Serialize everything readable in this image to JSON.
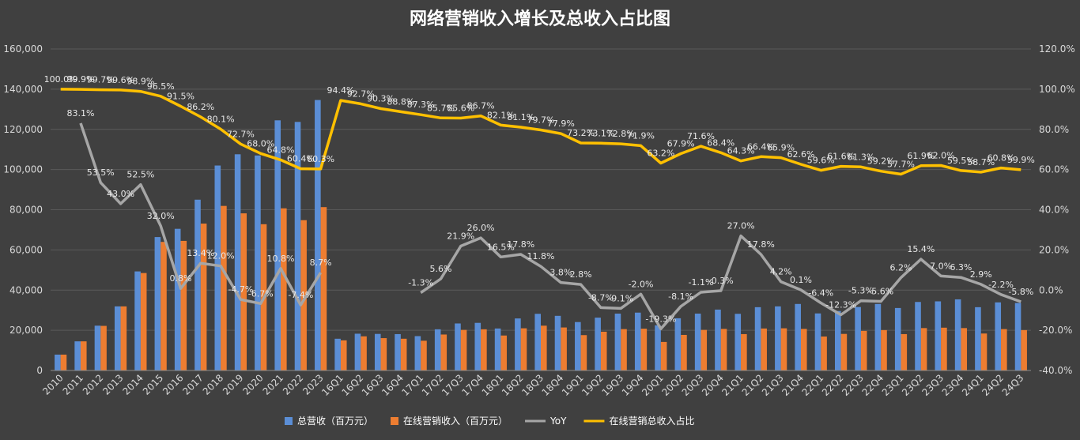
{
  "chart_data": {
    "type": "bar",
    "title": "网络营销收入增长及总收入占比图",
    "categories": [
      "2010",
      "2011",
      "2012",
      "2013",
      "2014",
      "2015",
      "2016",
      "2017",
      "2018",
      "2019",
      "2020",
      "2021",
      "2022",
      "2023",
      "16Q1",
      "16Q2",
      "16Q3",
      "16Q4",
      "17Q1",
      "17Q2",
      "17Q3",
      "17Q4",
      "18Q1",
      "18Q2",
      "18Q3",
      "18Q4",
      "19Q1",
      "19Q2",
      "19Q3",
      "19Q4",
      "20Q1",
      "20Q2",
      "20Q3",
      "20Q4",
      "21Q1",
      "21Q2",
      "21Q3",
      "21Q4",
      "22Q1",
      "22Q2",
      "22Q3",
      "22Q4",
      "23Q1",
      "23Q2",
      "23Q3",
      "23Q4",
      "24Q1",
      "24Q2",
      "24Q3"
    ],
    "y_left": {
      "ticks": [
        "0",
        "20,000",
        "40,000",
        "60,000",
        "80,000",
        "100,000",
        "120,000",
        "140,000",
        "160,000"
      ],
      "min": 0,
      "max": 160000
    },
    "y_right": {
      "ticks": [
        "-40.0%",
        "-20.0%",
        "0.0%",
        "20.0%",
        "40.0%",
        "60.0%",
        "80.0%",
        "100.0%",
        "120.0%"
      ],
      "min": -40,
      "max": 120
    },
    "grid": true,
    "legend_position": "bottom",
    "series": [
      {
        "name": "总营收（百万元）",
        "type": "bar",
        "axis": "left",
        "color": "#5b8ed6",
        "values": [
          7900,
          14500,
          22300,
          31900,
          49300,
          66400,
          70500,
          85000,
          102000,
          107600,
          107000,
          124500,
          123700,
          134600,
          15800,
          18300,
          18200,
          18100,
          17100,
          20500,
          23400,
          23700,
          20900,
          25900,
          28200,
          27200,
          24100,
          26300,
          28300,
          28800,
          22500,
          26000,
          28300,
          30300,
          28200,
          31500,
          31900,
          33100,
          28400,
          29600,
          31600,
          33100,
          31100,
          34100,
          34400,
          35400,
          31500,
          33900,
          33600
        ]
      },
      {
        "name": "在线营销收入（百万元）",
        "type": "bar",
        "axis": "left",
        "color": "#ed7d31",
        "values": [
          7900,
          14500,
          22200,
          31900,
          48500,
          64000,
          64500,
          73100,
          81900,
          78200,
          72800,
          80700,
          74800,
          81300,
          15000,
          17000,
          16100,
          15800,
          14800,
          17900,
          20200,
          20500,
          17400,
          21000,
          22300,
          21400,
          17600,
          19300,
          20600,
          20800,
          14200,
          17700,
          20200,
          20700,
          18100,
          20900,
          21000,
          20700,
          16900,
          18200,
          19700,
          20100,
          18100,
          21100,
          21300,
          21100,
          18400,
          20600,
          20100
        ]
      },
      {
        "name": "YoY",
        "type": "line",
        "axis": "right",
        "color": "#a6a6a6",
        "values": [
          null,
          83.1,
          53.5,
          43.0,
          52.5,
          32.0,
          0.8,
          13.4,
          12.0,
          -4.7,
          -6.7,
          10.8,
          -7.4,
          8.7,
          null,
          null,
          null,
          null,
          -1.3,
          5.6,
          21.9,
          26.0,
          16.5,
          17.8,
          11.8,
          3.8,
          2.8,
          -8.7,
          -9.1,
          -2.0,
          -19.3,
          -8.1,
          -1.1,
          -0.3,
          27.0,
          17.8,
          4.2,
          0.1,
          -6.4,
          -12.3,
          -5.3,
          -5.6,
          6.2,
          15.4,
          7.0,
          6.3,
          2.9,
          -2.2,
          -5.8
        ],
        "labels": [
          "",
          "83.1%",
          "53.5%",
          "43.0%",
          "52.5%",
          "32.0%",
          "0.8%",
          "13.4%",
          "12.0%",
          "-4.7%",
          "-6.7%",
          "10.8%",
          "-7.4%",
          "8.7%",
          "",
          "",
          "",
          "",
          "-1.3%",
          "5.6%",
          "21.9%",
          "26.0%",
          "16.5%",
          "17.8%",
          "11.8%",
          "3.8%",
          "2.8%",
          "-8.7%",
          "-9.1%",
          "-2.0%",
          "-19.3%",
          "-8.1%",
          "-1.1%",
          "-0.3%",
          "27.0%",
          "17.8%",
          "4.2%",
          "0.1%",
          "-6.4%",
          "-12.3%",
          "-5.3%",
          "-5.6%",
          "6.2%",
          "15.4%",
          "7.0%",
          "6.3%",
          "2.9%",
          "-2.2%",
          "-5.8%"
        ]
      },
      {
        "name": "在线营销总收入占比",
        "type": "line",
        "axis": "right",
        "color": "#ffc000",
        "values": [
          100.0,
          99.9,
          99.7,
          99.6,
          98.9,
          96.5,
          91.5,
          86.2,
          80.1,
          72.7,
          68.0,
          64.8,
          60.4,
          60.3,
          94.4,
          92.7,
          90.3,
          88.8,
          87.3,
          85.7,
          85.6,
          86.7,
          82.1,
          81.1,
          79.7,
          77.9,
          73.2,
          73.1,
          72.8,
          71.9,
          63.2,
          67.9,
          71.6,
          68.4,
          64.3,
          66.4,
          65.9,
          62.6,
          59.6,
          61.6,
          61.3,
          59.2,
          57.7,
          61.9,
          62.0,
          59.5,
          58.7,
          60.8,
          59.9
        ],
        "labels": [
          "100.0%",
          "99.9%",
          "99.7%",
          "99.6%",
          "98.9%",
          "96.5%",
          "91.5%",
          "86.2%",
          "80.1%",
          "72.7%",
          "68.0%",
          "64.8%",
          "60.4%",
          "60.3%",
          "94.4%",
          "92.7%",
          "90.3%",
          "88.8%",
          "87.3%",
          "85.7%",
          "85.6%",
          "86.7%",
          "82.1%",
          "81.1%",
          "79.7%",
          "77.9%",
          "73.2%",
          "73.1%",
          "72.8%",
          "71.9%",
          "63.2%",
          "67.9%",
          "71.6%",
          "68.4%",
          "64.3%",
          "66.4%",
          "65.9%",
          "62.6%",
          "59.6%",
          "61.6%",
          "61.3%",
          "59.2%",
          "57.7%",
          "61.9%",
          "62.0%",
          "59.5%",
          "58.7%",
          "60.8%",
          "59.9%"
        ]
      }
    ]
  }
}
